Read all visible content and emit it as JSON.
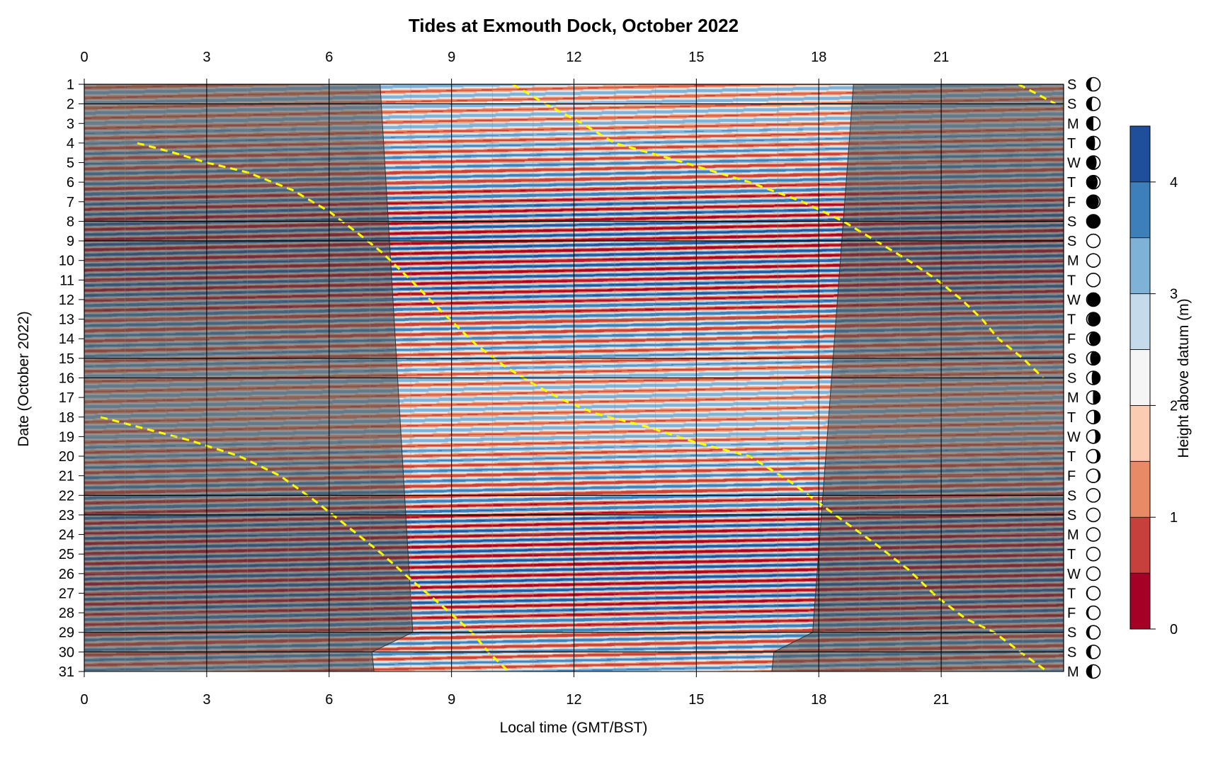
{
  "chart_data": {
    "type": "heatmap",
    "title": "Tides at Exmouth Dock, October 2022",
    "xlabel": "Local time (GMT/BST)",
    "ylabel": "Date (October 2022)",
    "x_ticks": [
      0,
      3,
      6,
      9,
      12,
      15,
      18,
      21
    ],
    "xlim": [
      0,
      24
    ],
    "ylim": [
      1,
      31
    ],
    "y_ticks": [
      1,
      2,
      3,
      4,
      5,
      6,
      7,
      8,
      9,
      10,
      11,
      12,
      13,
      14,
      15,
      16,
      17,
      18,
      19,
      20,
      21,
      22,
      23,
      24,
      25,
      26,
      27,
      28,
      29,
      30,
      31
    ],
    "weekday_letters": [
      "S",
      "S",
      "M",
      "T",
      "W",
      "T",
      "F",
      "S",
      "S",
      "M",
      "T",
      "W",
      "T",
      "F",
      "S",
      "S",
      "M",
      "T",
      "W",
      "T",
      "F",
      "S",
      "S",
      "M",
      "T",
      "W",
      "T",
      "F",
      "S",
      "S",
      "M"
    ],
    "moon_phase": [
      0.18,
      0.21,
      0.25,
      0.29,
      0.33,
      0.36,
      0.4,
      0.44,
      0.47,
      0.51,
      0.54,
      0.57,
      0.6,
      0.64,
      0.67,
      0.71,
      0.74,
      0.77,
      0.8,
      0.84,
      0.88,
      0.92,
      0.96,
      0.0,
      0.03,
      0.06,
      0.09,
      0.12,
      0.15,
      0.18,
      0.21
    ],
    "colorbar": {
      "label": "Height above datum (m)",
      "levels": [
        0,
        0.5,
        1,
        1.5,
        2,
        2.5,
        3,
        3.5,
        4,
        4.5
      ],
      "colors": [
        "#a50026",
        "#c8403c",
        "#e88a66",
        "#fbcbb2",
        "#f5f5f5",
        "#c5dbec",
        "#7fb2d7",
        "#3d7fb8",
        "#1f4f9a"
      ],
      "tick_values": [
        0,
        1,
        2,
        3,
        4
      ]
    },
    "tide_model": {
      "mean": 2.2,
      "amp_neap": 1.25,
      "amp_spring": 2.05,
      "spring_days": [
        9.5,
        25.5
      ],
      "semidiurnal_hours": 12.42,
      "hw_time_day1": 10.6
    },
    "daylight": {
      "sunrise": [
        [
          1,
          7.25
        ],
        [
          29,
          8.05
        ],
        [
          30,
          7.05
        ],
        [
          31,
          7.1
        ]
      ],
      "sunset": [
        [
          1,
          18.85
        ],
        [
          29,
          17.85
        ],
        [
          30,
          16.9
        ],
        [
          31,
          16.85
        ]
      ],
      "night_shade": "#4d4d4d",
      "night_alpha": 0.55
    },
    "high_water_line": [
      [
        [
          10.5,
          1
        ],
        [
          11.3,
          2
        ],
        [
          12.2,
          3
        ],
        [
          13.0,
          4
        ],
        [
          14.7,
          5
        ],
        [
          16.3,
          6
        ],
        [
          17.6,
          7
        ],
        [
          18.6,
          8
        ],
        [
          19.4,
          9
        ],
        [
          20.2,
          10
        ],
        [
          20.9,
          11
        ],
        [
          21.5,
          12
        ],
        [
          22.0,
          13
        ],
        [
          22.4,
          14
        ],
        [
          23.0,
          15
        ],
        [
          23.5,
          16
        ]
      ],
      [
        [
          22.9,
          1
        ],
        [
          23.8,
          2
        ]
      ],
      [
        [
          1.3,
          4
        ],
        [
          2.2,
          4.5
        ],
        [
          3.0,
          5
        ],
        [
          4.0,
          5.5
        ],
        [
          5.1,
          6.4
        ],
        [
          6.0,
          7.5
        ],
        [
          6.7,
          8.6
        ],
        [
          7.3,
          9.6
        ],
        [
          8.0,
          11
        ],
        [
          8.8,
          12.7
        ],
        [
          9.6,
          14.3
        ],
        [
          10.3,
          15.4
        ],
        [
          11.0,
          16.3
        ],
        [
          11.7,
          17.1
        ],
        [
          12.5,
          17.8
        ],
        [
          13.8,
          18.5
        ],
        [
          15.0,
          19.3
        ],
        [
          16.3,
          20
        ],
        [
          17.3,
          21.3
        ],
        [
          18.4,
          23
        ],
        [
          19.4,
          24.5
        ],
        [
          20.2,
          25.8
        ],
        [
          20.9,
          27.2
        ],
        [
          21.6,
          28.3
        ],
        [
          22.3,
          29
        ],
        [
          23.0,
          30.1
        ],
        [
          23.6,
          31
        ]
      ],
      [
        [
          0.4,
          18
        ],
        [
          1.5,
          18.6
        ],
        [
          2.6,
          19.2
        ],
        [
          3.8,
          20
        ],
        [
          4.8,
          21
        ],
        [
          5.6,
          22.2
        ],
        [
          6.4,
          23.5
        ],
        [
          7.3,
          25
        ],
        [
          8.0,
          26.3
        ],
        [
          8.8,
          27.7
        ],
        [
          9.5,
          29
        ],
        [
          9.9,
          30
        ],
        [
          10.4,
          31
        ]
      ]
    ],
    "high_water_line_color": "#ffff00",
    "grid": true
  }
}
